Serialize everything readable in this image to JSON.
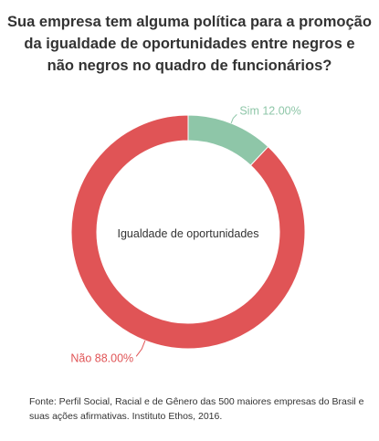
{
  "title": {
    "line1": "Sua empresa tem alguma política para a promoção",
    "line2": "da igualdade de oportunidades entre negros e",
    "line3": "não negros no quadro de funcionários?"
  },
  "chart_data": {
    "type": "pie",
    "center_label": "Igualdade de oportunidades",
    "slices": [
      {
        "name": "Sim",
        "value": 12.0,
        "label": "Sim 12.00%",
        "color": "#8ec6a8"
      },
      {
        "name": "Não",
        "value": 88.0,
        "label": "Não 88.00%",
        "color": "#e05456"
      }
    ]
  },
  "source": {
    "line1": "Fonte: Perfil Social, Racial e de Gênero das 500 maiores empresas do Brasil e",
    "line2": "suas ações afirmativas. Instituto Ethos, 2016."
  }
}
